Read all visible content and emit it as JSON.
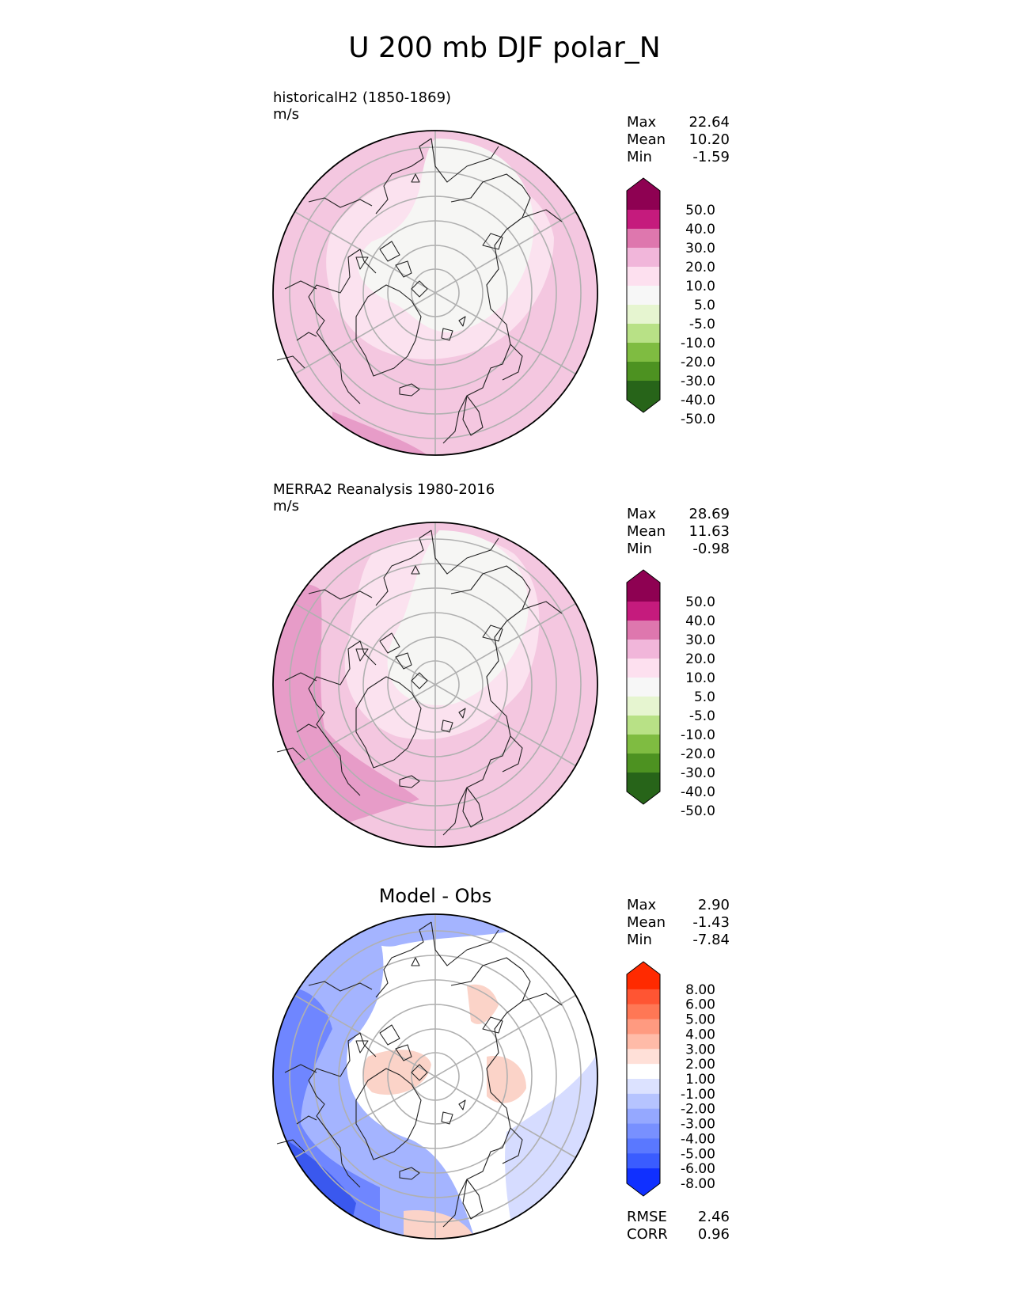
{
  "title": "U 200 mb DJF polar_N",
  "panels": [
    {
      "title": "historicalH2 (1850-1869)",
      "units": "m/s",
      "stats": [
        {
          "label": "Max",
          "value": "22.64"
        },
        {
          "label": "Mean",
          "value": "10.20"
        },
        {
          "label": "Min",
          "value": "-1.59"
        }
      ],
      "colorbar": {
        "labels": [
          "50.0",
          "40.0",
          "30.0",
          "20.0",
          "10.0",
          "5.0",
          "-5.0",
          "-10.0",
          "-20.0",
          "-30.0",
          "-40.0",
          "-50.0"
        ],
        "colors": [
          "#8e0152",
          "#c51b7d",
          "#de77ae",
          "#f1b6da",
          "#fde0ef",
          "#f7f7f7",
          "#e6f5d0",
          "#b8e186",
          "#7fbc41",
          "#4d9221",
          "#276419"
        ]
      }
    },
    {
      "title": "MERRA2 Reanalysis 1980-2016",
      "units": "m/s",
      "stats": [
        {
          "label": "Max",
          "value": "28.69"
        },
        {
          "label": "Mean",
          "value": "11.63"
        },
        {
          "label": "Min",
          "value": "-0.98"
        }
      ],
      "colorbar": {
        "labels": [
          "50.0",
          "40.0",
          "30.0",
          "20.0",
          "10.0",
          "5.0",
          "-5.0",
          "-10.0",
          "-20.0",
          "-30.0",
          "-40.0",
          "-50.0"
        ],
        "colors": [
          "#8e0152",
          "#c51b7d",
          "#de77ae",
          "#f1b6da",
          "#fde0ef",
          "#f7f7f7",
          "#e6f5d0",
          "#b8e186",
          "#7fbc41",
          "#4d9221",
          "#276419"
        ]
      }
    },
    {
      "title": "Model - Obs",
      "stats": [
        {
          "label": "Max",
          "value": "2.90"
        },
        {
          "label": "Mean",
          "value": "-1.43"
        },
        {
          "label": "Min",
          "value": "-7.84"
        }
      ],
      "metrics": [
        {
          "label": "RMSE",
          "value": "2.46"
        },
        {
          "label": "CORR",
          "value": "0.96"
        }
      ],
      "colorbar": {
        "labels": [
          "8.00",
          "6.00",
          "5.00",
          "4.00",
          "3.00",
          "2.00",
          "1.00",
          "-1.00",
          "-2.00",
          "-3.00",
          "-4.00",
          "-5.00",
          "-6.00",
          "-8.00"
        ],
        "colors": [
          "#ff2a00",
          "#ff5533",
          "#ff7755",
          "#ff9a80",
          "#ffbba8",
          "#ffe0d8",
          "#ffffff",
          "#dce2ff",
          "#b6c4ff",
          "#95a8ff",
          "#7890ff",
          "#5a78ff",
          "#3a5cff",
          "#1030ff"
        ]
      }
    }
  ],
  "colors": {
    "pink_light": "#f4c7e0",
    "pink_lighter": "#fbe2ef",
    "near_white": "#f6f6f4",
    "pink_mid": "#e79cc8",
    "grid": "#b0b0b0",
    "coast": "#222222",
    "blue_light": "#d6dcff",
    "blue_mid": "#a4b4ff",
    "blue_strong": "#6f86ff",
    "blue_deep": "#3a58ee",
    "red_light": "#fbd3c8"
  }
}
